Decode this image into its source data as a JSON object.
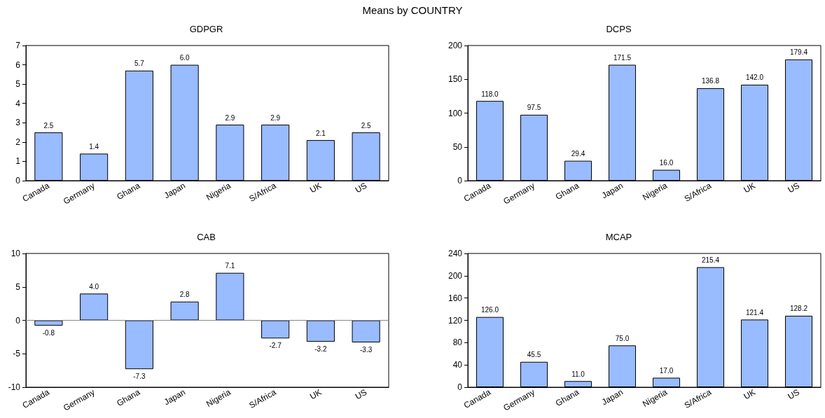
{
  "chart_data": [
    {
      "type": "bar",
      "title": "GDPGR",
      "annotations": [
        "Means by COUNTRY"
      ],
      "categories": [
        "Canada",
        "Germany",
        "Ghana",
        "Japan",
        "Nigeria",
        "S/Africa",
        "UK",
        "US"
      ],
      "values": [
        2.5,
        1.4,
        5.7,
        6.0,
        2.9,
        2.9,
        2.1,
        2.5
      ],
      "value_labels": [
        "2.5",
        "1.4",
        "5.7",
        "6.0",
        "2.9",
        "2.9",
        "2.1",
        "2.5"
      ],
      "color": "#99bbff",
      "ylim": [
        0,
        7
      ],
      "yticks": [
        0,
        1,
        2,
        3,
        4,
        5,
        6,
        7
      ]
    },
    {
      "type": "bar",
      "title": "DCPS",
      "categories": [
        "Canada",
        "Germany",
        "Ghana",
        "Japan",
        "Nigeria",
        "S/Africa",
        "UK",
        "US"
      ],
      "values": [
        118.0,
        97.5,
        29.4,
        171.5,
        16.0,
        136.8,
        142.0,
        179.4
      ],
      "value_labels": [
        "118.0",
        "97.5",
        "29.4",
        "171.5",
        "16.0",
        "136.8",
        "142.0",
        "179.4"
      ],
      "color": "#99bbff",
      "ylim": [
        0,
        200
      ],
      "yticks": [
        0,
        50,
        100,
        150,
        200
      ]
    },
    {
      "type": "bar",
      "title": "CAB",
      "categories": [
        "Canada",
        "Germany",
        "Ghana",
        "Japan",
        "Nigeria",
        "S/Africa",
        "UK",
        "US"
      ],
      "values": [
        -0.8,
        4.0,
        -7.3,
        2.8,
        7.1,
        -2.7,
        -3.2,
        -3.3
      ],
      "value_labels": [
        "-0.8",
        "4.0",
        "-7.3",
        "2.8",
        "7.1",
        "-2.7",
        "-3.2",
        "-3.3"
      ],
      "color": "#99bbff",
      "ylim": [
        -10,
        10
      ],
      "yticks": [
        -10,
        -5,
        0,
        5,
        10
      ],
      "ref_lines": [
        {
          "axis": "y",
          "value": 0,
          "color": "#888888"
        }
      ]
    },
    {
      "type": "bar",
      "title": "MCAP",
      "categories": [
        "Canada",
        "Germany",
        "Ghana",
        "Japan",
        "Nigeria",
        "S/Africa",
        "UK",
        "US"
      ],
      "values": [
        126.0,
        45.5,
        11.0,
        75.0,
        17.0,
        215.4,
        121.4,
        128.2
      ],
      "value_labels": [
        "126.0",
        "45.5",
        "11.0",
        "75.0",
        "17.0",
        "215.4",
        "121.4",
        "128.2"
      ],
      "color": "#99bbff",
      "ylim": [
        0,
        240
      ],
      "yticks": [
        0,
        40,
        80,
        120,
        160,
        200,
        240
      ]
    }
  ]
}
